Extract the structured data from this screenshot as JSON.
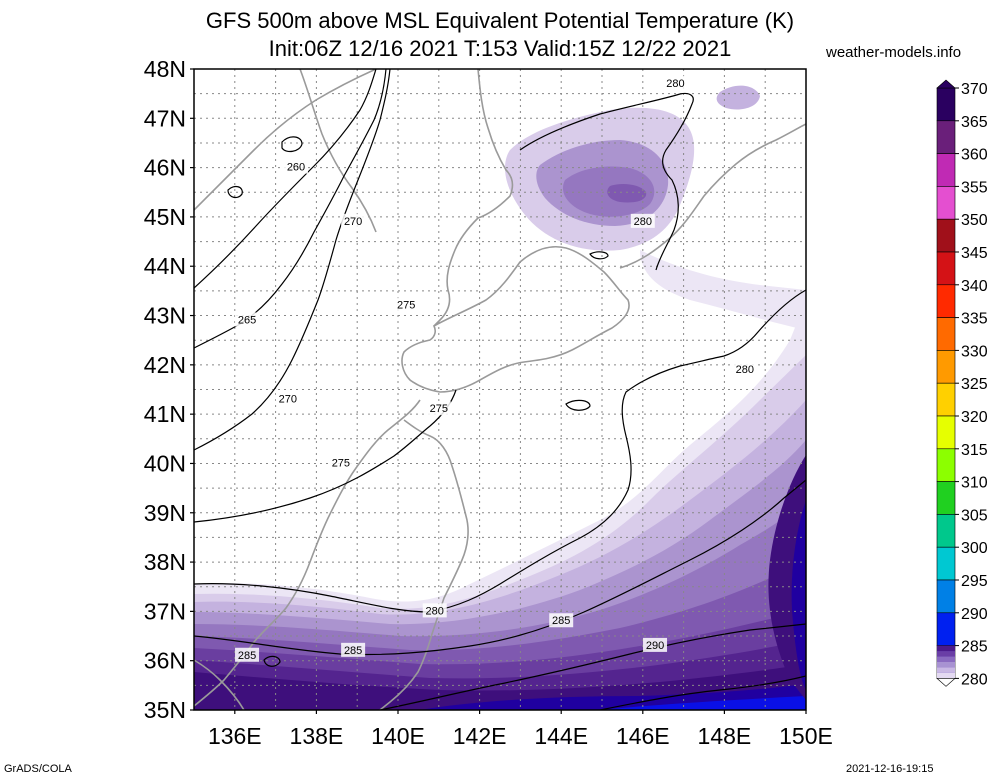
{
  "header": {
    "title": "GFS 500m above MSL Equivalent Potential Temperature (K)",
    "subtitle": "Init:06Z 12/16 2021 T:153 Valid:15Z 12/22 2021",
    "site": "weather-models.info"
  },
  "footer": {
    "left": "GrADS/COLA",
    "right": "2021-12-16-19:15"
  },
  "map": {
    "lat_labels": [
      "48N",
      "47N",
      "46N",
      "45N",
      "44N",
      "43N",
      "42N",
      "41N",
      "40N",
      "39N",
      "38N",
      "37N",
      "36N",
      "35N"
    ],
    "lon_labels": [
      "136E",
      "138E",
      "140E",
      "142E",
      "144E",
      "146E",
      "148E",
      "150E"
    ],
    "lat_range": [
      35,
      48
    ],
    "lon_range": [
      135,
      150
    ],
    "contour_labels": [
      {
        "text": "260",
        "lon": 137.5,
        "lat": 46.0
      },
      {
        "text": "265",
        "lon": 136.3,
        "lat": 42.9
      },
      {
        "text": "270",
        "lon": 138.9,
        "lat": 44.9
      },
      {
        "text": "270",
        "lon": 137.3,
        "lat": 41.3
      },
      {
        "text": "275",
        "lon": 140.2,
        "lat": 43.2
      },
      {
        "text": "275",
        "lon": 141.0,
        "lat": 41.1
      },
      {
        "text": "275",
        "lon": 138.6,
        "lat": 40.0
      },
      {
        "text": "280",
        "lon": 146.8,
        "lat": 47.7
      },
      {
        "text": "280",
        "lon": 146.0,
        "lat": 44.9
      },
      {
        "text": "280",
        "lon": 148.5,
        "lat": 41.9
      },
      {
        "text": "280",
        "lon": 140.9,
        "lat": 37.0
      },
      {
        "text": "285",
        "lon": 144.0,
        "lat": 36.8
      },
      {
        "text": "285",
        "lon": 138.9,
        "lat": 36.2
      },
      {
        "text": "285",
        "lon": 136.3,
        "lat": 36.1
      },
      {
        "text": "290",
        "lon": 146.3,
        "lat": 36.3
      }
    ]
  },
  "colorbar": {
    "labels": [
      "370",
      "365",
      "360",
      "355",
      "350",
      "345",
      "340",
      "335",
      "330",
      "325",
      "320",
      "315",
      "310",
      "305",
      "300",
      "295",
      "290",
      "285",
      "280"
    ],
    "colors": [
      "#2a0060",
      "#6a1f7a",
      "#c02ab4",
      "#e44fd0",
      "#a0101a",
      "#d41216",
      "#ff2a00",
      "#ff6a00",
      "#ff9a00",
      "#ffd000",
      "#e6ff00",
      "#8cff00",
      "#20d020",
      "#00c88c",
      "#00c8d2",
      "#0080e6",
      "#0020f0",
      "#1a00b4",
      "#3a0086"
    ],
    "light_colors": [
      "#4b1a8a",
      "#6a3ea6",
      "#8a6ac0",
      "#a892d2",
      "#c9b8e4",
      "#e4daf2"
    ]
  },
  "field_colors": [
    "#ece6f5",
    "#d9ccea",
    "#c4b2df",
    "#ab94cf",
    "#9577c0",
    "#7f59b0",
    "#6a3ea0",
    "#54248f",
    "#3e0f7c",
    "#300a78",
    "#2000a0",
    "#1400c8",
    "#0a10e6",
    "#0028ff"
  ]
}
